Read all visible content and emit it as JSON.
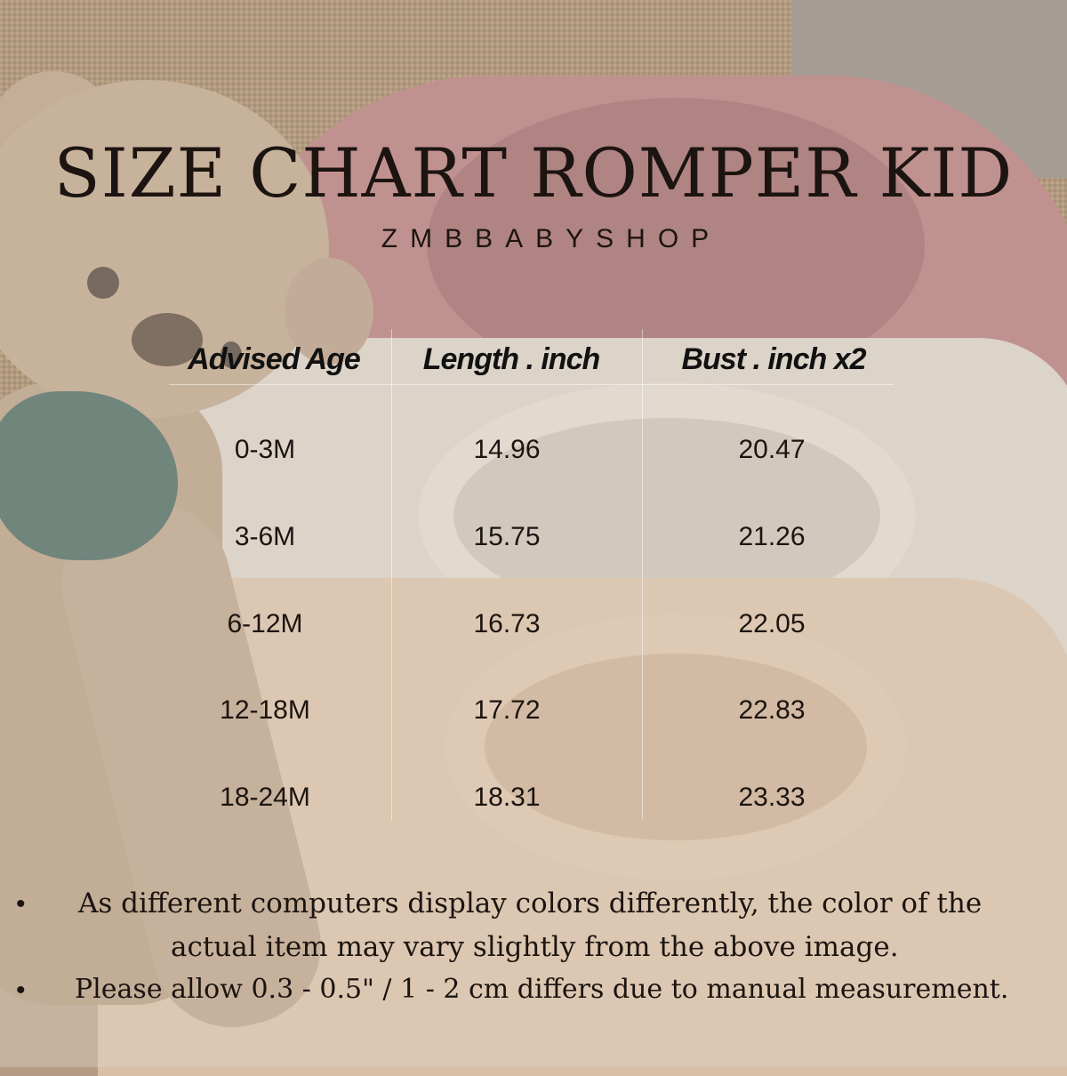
{
  "title": "SIZE CHART ROMPER KID",
  "brand": "ZMBBABYSHOP",
  "table": {
    "headers": [
      "Advised Age",
      "Length . inch",
      "Bust . inch x2"
    ],
    "rows": [
      [
        "0-3M",
        "14.96",
        "20.47"
      ],
      [
        "3-6M",
        "15.75",
        "21.26"
      ],
      [
        "6-12M",
        "16.73",
        "22.05"
      ],
      [
        "12-18M",
        "17.72",
        "22.83"
      ],
      [
        "18-24M",
        "18.31",
        "23.33"
      ]
    ]
  },
  "notes": {
    "bullet": "•",
    "note1_line1": "As different computers display colors differently, the color of the",
    "note1_line2": "actual item may vary slightly from the above image.",
    "note2": "Please allow 0.3 - 0.5\" / 1 - 2 cm differs due to manual measurement."
  }
}
